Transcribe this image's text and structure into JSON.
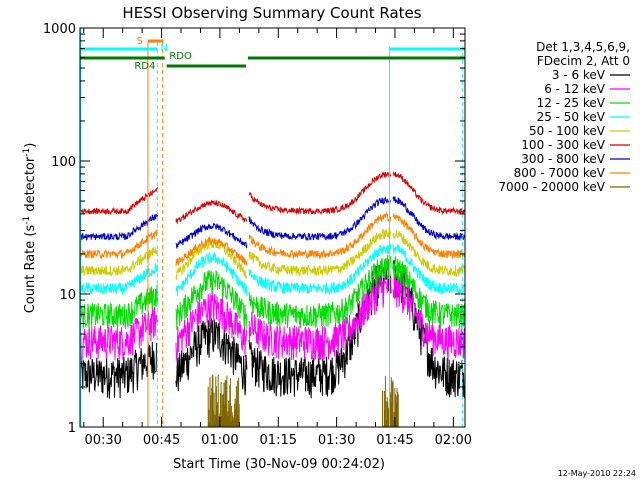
{
  "chart_data": {
    "type": "line",
    "title": "HESSI Observing Summary Count Rates",
    "xlabel": "Start Time (30-Nov-09 00:24:02)",
    "ylabel_main": "Count Rate (s",
    "ylabel_sup1": "-1",
    "ylabel_mid": " detector",
    "ylabel_sup2": "-1",
    "ylabel_end": ")",
    "footer_timestamp": "12-May-2010 22:24",
    "y_scale": "log",
    "ylim": [
      1,
      1000
    ],
    "xlim_minutes": [
      24.0333,
      123.0
    ],
    "y_ticks": [
      {
        "value": 1,
        "label": "1"
      },
      {
        "value": 10,
        "label": "10"
      },
      {
        "value": 100,
        "label": "100"
      },
      {
        "value": 1000,
        "label": "1000"
      }
    ],
    "x_ticks": [
      {
        "minutes": 30,
        "label": "00:30"
      },
      {
        "minutes": 45,
        "label": "00:45"
      },
      {
        "minutes": 60,
        "label": "01:00"
      },
      {
        "minutes": 75,
        "label": "01:15"
      },
      {
        "minutes": 90,
        "label": "01:30"
      },
      {
        "minutes": 105,
        "label": "01:45"
      },
      {
        "minutes": 120,
        "label": "02:00"
      }
    ],
    "legend": {
      "title_line1": "Det 1,3,4,5,6,9,",
      "title_line2": "FDecim 2, Att 0",
      "placement": "right"
    },
    "series": [
      {
        "name": "3 - 6 keV",
        "color": "#000000"
      },
      {
        "name": "6 - 12 keV",
        "color": "#ff00ff"
      },
      {
        "name": "12 - 25 keV",
        "color": "#00dd00"
      },
      {
        "name": "25 - 50 keV",
        "color": "#00ffff"
      },
      {
        "name": "50 - 100 keV",
        "color": "#cccc00"
      },
      {
        "name": "100 - 300 keV",
        "color": "#dd0000"
      },
      {
        "name": "300 - 800 keV",
        "color": "#0000cc"
      },
      {
        "name": "800 - 7000 keV",
        "color": "#ff8000"
      },
      {
        "name": "7000 - 20000 keV",
        "color": "#806600"
      }
    ],
    "flags": [
      {
        "label": "S",
        "color": "#ff8000"
      },
      {
        "label": "N",
        "color": "#00ffff"
      },
      {
        "label": "RD4",
        "color": "#007700"
      },
      {
        "label": "RDO",
        "color": "#007700"
      }
    ]
  }
}
